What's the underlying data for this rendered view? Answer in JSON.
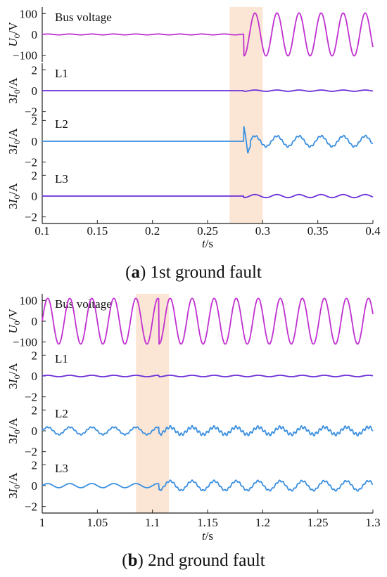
{
  "captions": {
    "a": {
      "label": "a",
      "open": "(",
      "close": ")",
      "text": " 1st ground fault"
    },
    "b": {
      "label": "b",
      "open": "(",
      "close": ")",
      "text": " 2nd ground fault"
    }
  },
  "chart_data": [
    {
      "type": "line",
      "panel": "a",
      "x_label": "t/s",
      "xlim": [
        0.1,
        0.4
      ],
      "x_ticks": [
        "0.1",
        "0.15",
        "0.2",
        "0.25",
        "0.3",
        "0.35",
        "0.4"
      ],
      "highlight_x": [
        0.27,
        0.3
      ],
      "highlight_color": "#fbe6d6",
      "subplots": [
        {
          "name": "Bus voltage",
          "ylabel": "U0/V",
          "ylim": [
            -100,
            100
          ],
          "y_ticks": [
            "100",
            "0",
            "-100"
          ],
          "color": "#c030d0",
          "before_fault": {
            "amplitude": 2,
            "period": 0.02
          },
          "fault_time": 0.283,
          "after_fault": {
            "amplitude": 103,
            "period": 0.02
          }
        },
        {
          "name": "L1",
          "ylabel": "3I0/A",
          "ylim": [
            -2,
            2
          ],
          "y_ticks": [
            "2",
            "0",
            "-2"
          ],
          "color": "#6a2fd8",
          "before_fault": {
            "amplitude": 0.0,
            "period": 0.02
          },
          "fault_time": 0.283,
          "after_fault": {
            "amplitude": 0.06,
            "period": 0.02
          }
        },
        {
          "name": "L2",
          "ylabel": "3I0/A",
          "ylim": [
            -2,
            2
          ],
          "y_ticks": [
            "2",
            "0",
            "-2"
          ],
          "color": "#3a8fe0",
          "before_fault": {
            "amplitude": 0.0,
            "period": 0.02
          },
          "fault_time": 0.283,
          "spike": 1.5,
          "after_fault": {
            "amplitude": 0.5,
            "period": 0.02
          }
        },
        {
          "name": "L3",
          "ylabel": "3I0/A",
          "ylim": [
            -2,
            2
          ],
          "y_ticks": [
            "2",
            "0",
            "-2"
          ],
          "color": "#6a2fd8",
          "before_fault": {
            "amplitude": 0.0,
            "period": 0.02
          },
          "fault_time": 0.283,
          "after_fault": {
            "amplitude": 0.15,
            "period": 0.02
          }
        }
      ]
    },
    {
      "type": "line",
      "panel": "b",
      "x_label": "t/s",
      "xlim": [
        1.0,
        1.3
      ],
      "x_ticks": [
        "1",
        "1.05",
        "1.1",
        "1.15",
        "1.2",
        "1.25",
        "1.3"
      ],
      "highlight_x": [
        1.085,
        1.115
      ],
      "highlight_color": "#fbe6d6",
      "subplots": [
        {
          "name": "Bus voltage",
          "ylabel": "U0/V",
          "ylim": [
            -100,
            100
          ],
          "y_ticks": [
            "100",
            "0",
            "-100"
          ],
          "color": "#c030d0",
          "before_fault": {
            "amplitude": 110,
            "period": 0.02
          },
          "fault_time": 1.106,
          "after_fault": {
            "amplitude": 110,
            "period": 0.02
          }
        },
        {
          "name": "L1",
          "ylabel": "3I0/A",
          "ylim": [
            -2,
            2
          ],
          "y_ticks": [
            "2",
            "0",
            "-2"
          ],
          "color": "#6a2fd8",
          "before_fault": {
            "amplitude": 0.07,
            "period": 0.02
          },
          "fault_time": 1.106,
          "after_fault": {
            "amplitude": 0.07,
            "period": 0.02
          }
        },
        {
          "name": "L2",
          "ylabel": "3I0/A",
          "ylim": [
            -2,
            2
          ],
          "y_ticks": [
            "2",
            "0",
            "-2"
          ],
          "color": "#3a8fe0",
          "before_fault": {
            "amplitude": 0.35,
            "period": 0.02
          },
          "fault_time": 1.106,
          "after_fault": {
            "amplitude": 0.35,
            "period": 0.02
          }
        },
        {
          "name": "L3",
          "ylabel": "3I0/A",
          "ylim": [
            -2,
            2
          ],
          "y_ticks": [
            "2",
            "0",
            "-2"
          ],
          "color": "#3a8fe0",
          "before_fault": {
            "amplitude": 0.2,
            "period": 0.02
          },
          "fault_time": 1.106,
          "after_fault": {
            "amplitude": 0.45,
            "period": 0.02
          }
        }
      ]
    }
  ]
}
